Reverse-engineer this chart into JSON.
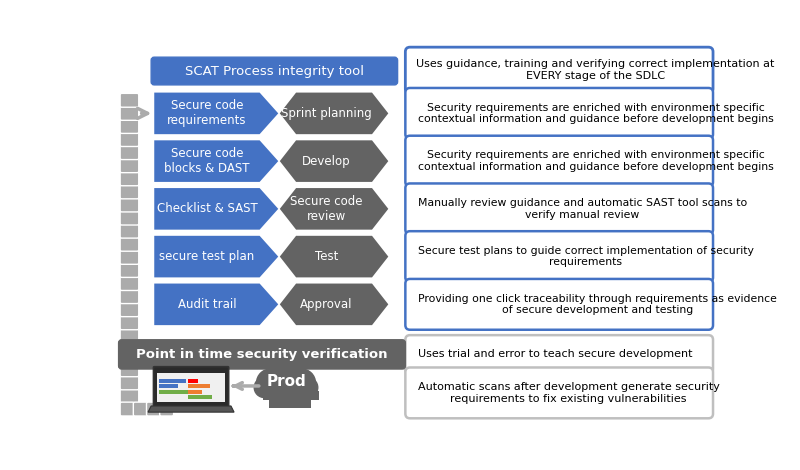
{
  "title_top": "SCAT Process integrity tool",
  "title_bottom": "Point in time security verification",
  "top_box_text": "Uses guidance, training and verifying correct implementation at\nEVERY stage of the SDLC",
  "blue_color": "#4472C4",
  "dark_gray_color": "#636363",
  "chain_gray": "#ABABAB",
  "light_gray_color": "#BFBFBF",
  "white": "#FFFFFF",
  "rows": [
    {
      "left_label": "Secure code\nrequirements",
      "right_label": "Sprint planning",
      "desc": "Security requirements are enriched with environment specific\ncontextual information and guidance before development begins"
    },
    {
      "left_label": "Secure code\nblocks & DAST",
      "right_label": "Develop",
      "desc": "Security requirements are enriched with environment specific\ncontextual information and guidance before development begins"
    },
    {
      "left_label": "Checklist & SAST",
      "right_label": "Secure code\nreview",
      "desc": "Manually review guidance and automatic SAST tool scans to\nverify manual review"
    },
    {
      "left_label": "secure test plan",
      "right_label": "Test",
      "desc": "Secure test plans to guide correct implementation of security\nrequirements"
    },
    {
      "left_label": "Audit trail",
      "right_label": "Approval",
      "desc": "Providing one click traceability through requirements as evidence\nof secure development and testing"
    }
  ],
  "bottom_right_text1": "Uses trial and error to teach secure development",
  "bottom_right_text2": "Automatic scans after development generate security\nrequirements to fix existing vulnerabilities",
  "prod_label": "Prod"
}
